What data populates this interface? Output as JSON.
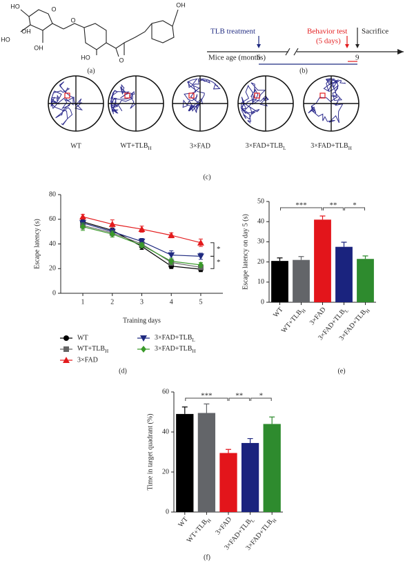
{
  "figure": {
    "panel_labels": [
      "(a)",
      "(b)",
      "(c)"
    ]
  },
  "structure": {
    "atoms": [
      "HO",
      "O",
      "OH",
      "HO",
      "OH",
      "O",
      "HO",
      "O",
      "OH"
    ]
  },
  "timeline": {
    "treatment": "TLB treatment",
    "behavior_test": "Behavior test",
    "duration": "(5 days)",
    "sacrifice": "Sacrifice",
    "axis_label": "Mice age (months)",
    "start": "6",
    "end": "9"
  },
  "tracks": {
    "groups": [
      "WT",
      "WT+TLBH",
      "3×FAD",
      "3×FAD+TLBL",
      "3×FAD+TLBH"
    ]
  },
  "chart_data": [
    {
      "type": "line",
      "panel_label": "(d)",
      "x_label": "Training days",
      "y_label": "Escape latency (s)",
      "x": [
        1,
        2,
        3,
        4,
        5
      ],
      "xlim": [
        0.25,
        5.75
      ],
      "xticks": [
        1,
        2,
        3,
        4,
        5
      ],
      "ylim": [
        0,
        80
      ],
      "yticks": [
        0,
        20,
        40,
        60,
        80
      ],
      "annotations": [
        "*",
        "*"
      ],
      "series": [
        {
          "name": "WT",
          "color": "#000000",
          "marker": "circle",
          "values": [
            58,
            51,
            38,
            22,
            19.5
          ],
          "errors": [
            2.5,
            2,
            2.5,
            2,
            2
          ]
        },
        {
          "name": "WT+TLBH",
          "color": "#666666",
          "marker": "square",
          "values": [
            55,
            49,
            40,
            25,
            21
          ],
          "errors": [
            3,
            2.5,
            2.5,
            2.5,
            2
          ]
        },
        {
          "name": "3×FAD",
          "color": "#e31a1c",
          "marker": "triangle",
          "values": [
            62,
            56,
            52,
            47,
            41
          ],
          "errors": [
            2,
            3.5,
            2.5,
            2,
            3
          ]
        },
        {
          "name": "3×FAD+TLBL",
          "color": "#1f2a80",
          "marker": "triangle-down",
          "values": [
            57,
            50,
            42,
            31,
            30
          ],
          "errors": [
            2.5,
            2.5,
            2.5,
            3.5,
            2.5
          ]
        },
        {
          "name": "3×FAD+TLBH",
          "color": "#3a9a2a",
          "marker": "diamond",
          "values": [
            54,
            48,
            39,
            26,
            23
          ],
          "errors": [
            3,
            2.5,
            2,
            2.5,
            2
          ]
        }
      ]
    },
    {
      "type": "bar",
      "panel_label": "(e)",
      "y_label": "Escape latency on day 5 (s)",
      "categories": [
        "WT",
        "WT+TLBH",
        "3×FAD",
        "3×FAD+TLBL",
        "3×FAD+TLBH"
      ],
      "values": [
        20.5,
        21,
        41,
        27.5,
        21.5
      ],
      "errors": [
        1.5,
        1.7,
        1.8,
        2.3,
        1.5
      ],
      "colors": [
        "#000000",
        "#636569",
        "#e3151b",
        "#1a237e",
        "#2e8b2e"
      ],
      "ylim": [
        0,
        50
      ],
      "yticks": [
        0,
        10,
        20,
        30,
        40,
        50
      ],
      "annotations": [
        "***",
        "**",
        "*"
      ]
    },
    {
      "type": "bar",
      "panel_label": "(f)",
      "y_label": "Time in target quadrant (%)",
      "categories": [
        "WT",
        "WT+TLBH",
        "3×FAD",
        "3×FAD+TLBL",
        "3×FAD+TLBH"
      ],
      "values": [
        49,
        49.5,
        29.5,
        34.5,
        44
      ],
      "errors": [
        3.5,
        4.5,
        1.8,
        2.2,
        3.5
      ],
      "colors": [
        "#000000",
        "#636569",
        "#e3151b",
        "#1a237e",
        "#2e8b2e"
      ],
      "ylim": [
        0,
        60
      ],
      "yticks": [
        0,
        20,
        40,
        60
      ],
      "annotations": [
        "***",
        "**",
        "*"
      ]
    }
  ]
}
